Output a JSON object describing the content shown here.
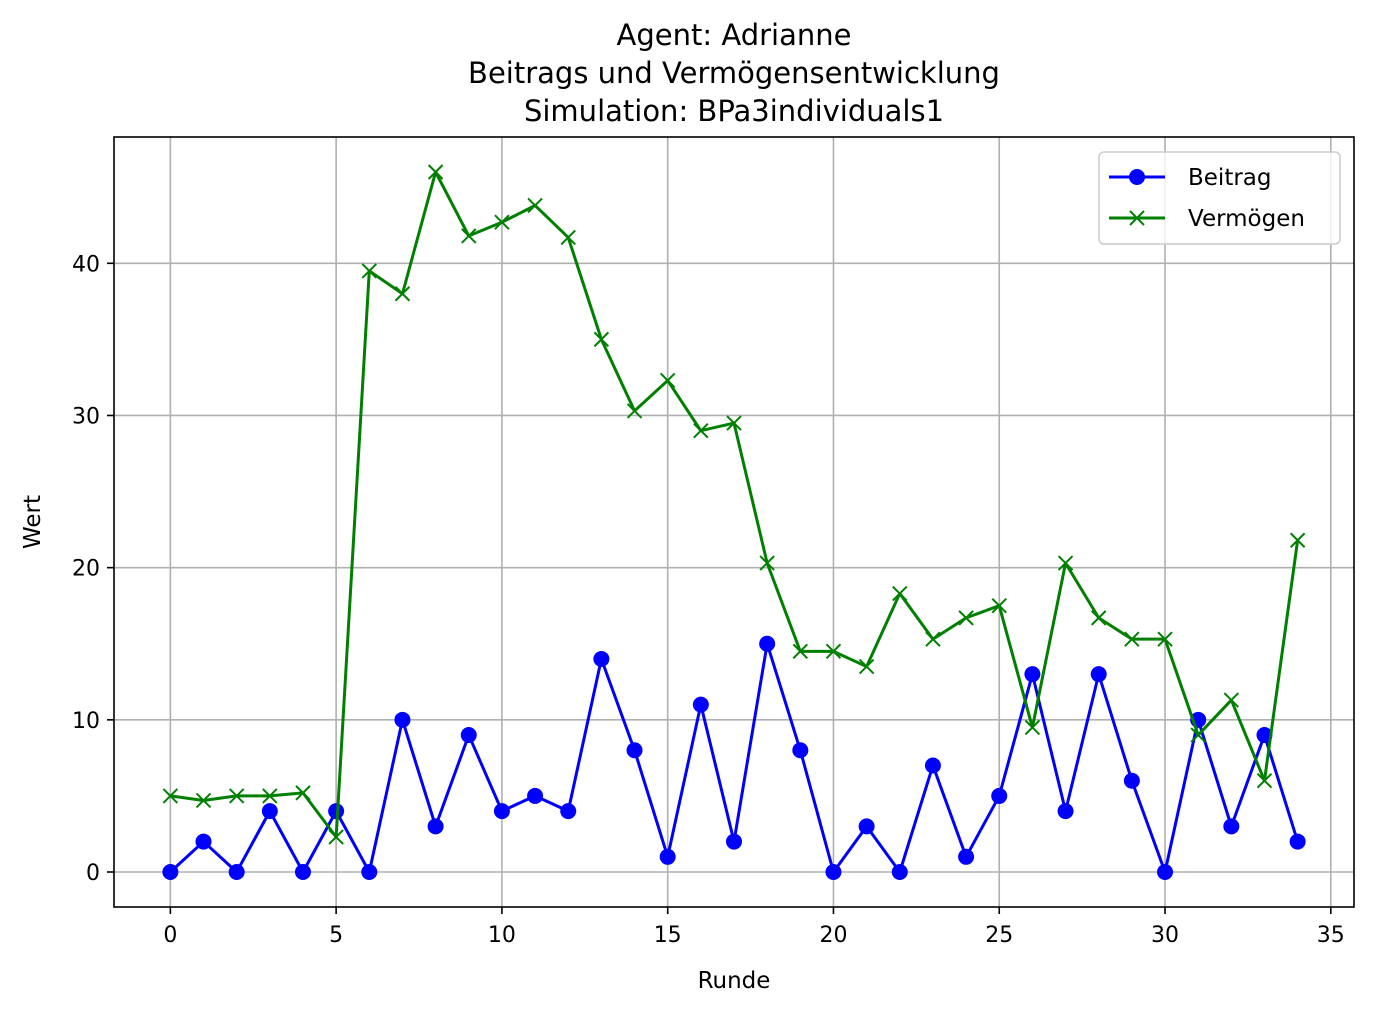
{
  "chart_data": {
    "type": "line",
    "title": [
      "Agent: Adrianne",
      "Beitrags und Vermögensentwicklung",
      "Simulation: BPa3individuals1"
    ],
    "xlabel": "Runde",
    "ylabel": "Wert",
    "xlim": [
      -1.7,
      35.7
    ],
    "ylim": [
      -2.3,
      48.3
    ],
    "xticks": [
      0,
      5,
      10,
      15,
      20,
      25,
      30,
      35
    ],
    "yticks": [
      0,
      10,
      20,
      30,
      40
    ],
    "grid": true,
    "legend_position": "top-right",
    "x": [
      0,
      1,
      2,
      3,
      4,
      5,
      6,
      7,
      8,
      9,
      10,
      11,
      12,
      13,
      14,
      15,
      16,
      17,
      18,
      19,
      20,
      21,
      22,
      23,
      24,
      25,
      26,
      27,
      28,
      29,
      30,
      31,
      32,
      33,
      34
    ],
    "series": [
      {
        "name": "Beitrag",
        "color": "#0000ff",
        "marker": "circle",
        "values": [
          0,
          2,
          0,
          4,
          0,
          4,
          0,
          10,
          3,
          9,
          4,
          5,
          4,
          14,
          8,
          1,
          11,
          2,
          15,
          8,
          0,
          3,
          0,
          7,
          1,
          5,
          13,
          4,
          13,
          6,
          0,
          10,
          3,
          9,
          2
        ]
      },
      {
        "name": "Vermögen",
        "color": "#008000",
        "marker": "x",
        "values": [
          5,
          4.7,
          5,
          5,
          5.2,
          2.3,
          39.5,
          38,
          46,
          41.8,
          42.7,
          43.8,
          41.7,
          35,
          30.3,
          32.3,
          29,
          29.5,
          20.3,
          14.5,
          14.5,
          13.5,
          18.3,
          15.3,
          16.7,
          17.5,
          9.5,
          20.3,
          16.7,
          15.3,
          15.3,
          9,
          11.3,
          6,
          21.8
        ]
      }
    ]
  }
}
